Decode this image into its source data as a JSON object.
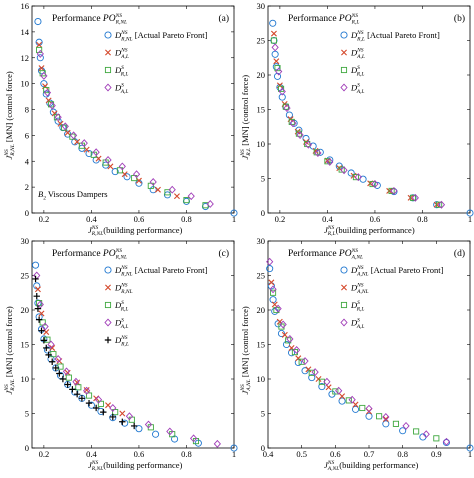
{
  "chart_data": [
    {
      "type": "scatter",
      "panel_label": "(a)",
      "title": {
        "prefix": "Performance ",
        "sym": "PO",
        "sup": "NS",
        "sub": "R,NL"
      },
      "xlabel": {
        "sym": "J",
        "sup": "NS",
        "sub": "R,NL",
        "text": "(building performance)"
      },
      "ylabel": {
        "sym": "J",
        "sup": "NS",
        "sub": "R,NL",
        "text": " [MN] (control force)"
      },
      "annotation": {
        "sym": "B",
        "sub": "2",
        "text": " Viscous Dampers"
      },
      "xlim": [
        0.15,
        1.0
      ],
      "ylim": [
        0,
        16
      ],
      "xticks": [
        0.2,
        0.4,
        0.6,
        0.8,
        1
      ],
      "xtick_labels": [
        "0.2",
        "0.4",
        "0.6",
        "0.8",
        "1"
      ],
      "yticks": [
        0,
        2,
        4,
        6,
        8,
        10,
        12,
        14,
        16
      ],
      "ytick_labels": [
        "0",
        "2",
        "4",
        "6",
        "8",
        "10",
        "12",
        "14",
        "16"
      ],
      "legend_position": "top-right",
      "series": [
        {
          "name": "actual-pareto",
          "marker": "circle",
          "color": "#1f77d0",
          "label": {
            "sym": "D",
            "sup": "NS",
            "sub": "R,NL",
            "tail": " [Actual Pareto Front]"
          },
          "x": [
            0.175,
            0.18,
            0.185,
            0.19,
            0.2,
            0.21,
            0.225,
            0.24,
            0.26,
            0.28,
            0.3,
            0.33,
            0.36,
            0.39,
            0.42,
            0.46,
            0.5,
            0.55,
            0.6,
            0.66,
            0.72,
            0.8,
            0.88,
            1.0
          ],
          "y": [
            14.8,
            13.2,
            12.0,
            11.0,
            10.0,
            9.2,
            8.5,
            7.8,
            7.1,
            6.6,
            6.1,
            5.5,
            5.0,
            4.6,
            4.1,
            3.7,
            3.2,
            2.8,
            2.3,
            1.8,
            1.4,
            0.9,
            0.5,
            0.0
          ]
        },
        {
          "name": "approx-nl",
          "marker": "cross",
          "color": "#d4482b",
          "label": {
            "sym": "D",
            "sup": "NS",
            "sub": "A,L",
            "tail": ""
          },
          "x": [
            0.18,
            0.19,
            0.205,
            0.22,
            0.245,
            0.27,
            0.3,
            0.34,
            0.38,
            0.43,
            0.48,
            0.54,
            0.6,
            0.68,
            0.76
          ],
          "y": [
            13.0,
            11.2,
            9.8,
            8.7,
            7.7,
            6.9,
            6.2,
            5.5,
            4.9,
            4.2,
            3.6,
            3.0,
            2.5,
            1.8,
            1.3
          ]
        },
        {
          "name": "approx-sl",
          "marker": "square",
          "color": "#3fa83f",
          "label": {
            "sym": "D",
            "sup": "S",
            "sub": "R,L",
            "tail": ""
          },
          "x": [
            0.18,
            0.195,
            0.21,
            0.23,
            0.255,
            0.285,
            0.32,
            0.36,
            0.41,
            0.46,
            0.52,
            0.58,
            0.65,
            0.72,
            0.8,
            0.88
          ],
          "y": [
            12.6,
            10.8,
            9.5,
            8.4,
            7.4,
            6.6,
            5.9,
            5.2,
            4.5,
            3.9,
            3.3,
            2.7,
            2.1,
            1.6,
            1.0,
            0.6
          ]
        },
        {
          "name": "approx-al",
          "marker": "diamond",
          "color": "#a03cb8",
          "label": {
            "sym": "D",
            "sup": "S",
            "sub": "A,L",
            "tail": ""
          },
          "x": [
            0.185,
            0.2,
            0.215,
            0.235,
            0.26,
            0.29,
            0.325,
            0.37,
            0.42,
            0.47,
            0.53,
            0.59,
            0.66,
            0.74,
            0.82,
            0.9
          ],
          "y": [
            12.3,
            10.6,
            9.3,
            8.3,
            7.4,
            6.7,
            6.0,
            5.4,
            4.7,
            4.1,
            3.6,
            3.0,
            2.4,
            1.8,
            1.3,
            0.7
          ]
        }
      ]
    },
    {
      "type": "scatter",
      "panel_label": "(b)",
      "title": {
        "prefix": "Performance ",
        "sym": "PO",
        "sup": "NS",
        "sub": "R,L"
      },
      "xlabel": {
        "sym": "J",
        "sup": "NS",
        "sub": "R,L",
        "text": "(building performance)"
      },
      "ylabel": {
        "sym": "J",
        "sup": "NS",
        "sub": "R,L",
        "text": " [MN] (control force)"
      },
      "xlim": [
        0.15,
        1.0
      ],
      "ylim": [
        0,
        30
      ],
      "xticks": [
        0.2,
        0.4,
        0.6,
        0.8,
        1
      ],
      "xtick_labels": [
        "0.2",
        "0.4",
        "0.6",
        "0.8",
        "1"
      ],
      "yticks": [
        0,
        5,
        10,
        15,
        20,
        25,
        30
      ],
      "ytick_labels": [
        "0",
        "5",
        "10",
        "15",
        "20",
        "25",
        "30"
      ],
      "legend_position": "top-right",
      "series": [
        {
          "name": "actual-pareto",
          "marker": "circle",
          "color": "#1f77d0",
          "label": {
            "sym": "D",
            "sup": "NS",
            "sub": "R,L",
            "tail": " [Actual Pareto Front]"
          },
          "x": [
            0.17,
            0.175,
            0.18,
            0.185,
            0.19,
            0.2,
            0.21,
            0.225,
            0.24,
            0.26,
            0.28,
            0.31,
            0.34,
            0.37,
            0.41,
            0.45,
            0.5,
            0.55,
            0.61,
            0.68,
            0.76,
            0.86,
            1.0
          ],
          "y": [
            27.5,
            25.0,
            23.0,
            21.2,
            19.8,
            18.2,
            16.8,
            15.4,
            14.2,
            13.0,
            12.0,
            10.8,
            9.7,
            8.8,
            7.7,
            6.8,
            5.8,
            4.9,
            4.0,
            3.1,
            2.2,
            1.2,
            0.0
          ]
        },
        {
          "name": "approx-nl",
          "marker": "cross",
          "color": "#d4482b",
          "label": {
            "sym": "D",
            "sup": "NS",
            "sub": "A,L",
            "tail": ""
          },
          "x": [
            0.175,
            0.185,
            0.2,
            0.22,
            0.245,
            0.275,
            0.31,
            0.35,
            0.4,
            0.45,
            0.51,
            0.58,
            0.66,
            0.75,
            0.86
          ],
          "y": [
            26.0,
            22.0,
            18.5,
            15.8,
            13.6,
            11.8,
            10.3,
            9.0,
            7.6,
            6.5,
            5.4,
            4.3,
            3.2,
            2.2,
            1.2
          ]
        },
        {
          "name": "approx-sl",
          "marker": "square",
          "color": "#3fa83f",
          "label": {
            "sym": "D",
            "sup": "S",
            "sub": "R,L",
            "tail": ""
          },
          "x": [
            0.175,
            0.19,
            0.205,
            0.225,
            0.25,
            0.28,
            0.315,
            0.355,
            0.4,
            0.46,
            0.52,
            0.59,
            0.67,
            0.76,
            0.87
          ],
          "y": [
            25.0,
            21.0,
            18.0,
            15.4,
            13.2,
            11.5,
            10.0,
            8.8,
            7.5,
            6.3,
            5.2,
            4.2,
            3.2,
            2.2,
            1.2
          ]
        },
        {
          "name": "approx-al",
          "marker": "diamond",
          "color": "#a03cb8",
          "label": {
            "sym": "D",
            "sup": "S",
            "sub": "A,L",
            "tail": ""
          },
          "x": [
            0.18,
            0.195,
            0.21,
            0.23,
            0.255,
            0.285,
            0.32,
            0.36,
            0.41,
            0.47,
            0.53,
            0.6,
            0.68,
            0.77,
            0.88
          ],
          "y": [
            24.0,
            20.5,
            17.6,
            15.2,
            13.0,
            11.3,
            9.9,
            8.7,
            7.4,
            6.2,
            5.2,
            4.2,
            3.2,
            2.2,
            1.2
          ]
        }
      ]
    },
    {
      "type": "scatter",
      "panel_label": "(c)",
      "title": {
        "prefix": "Performance ",
        "sym": "PO",
        "sup": "NS",
        "sub": "R,NL"
      },
      "xlabel": {
        "sym": "J",
        "sup": "NS",
        "sub": "R,NL",
        "text": "(building performance)"
      },
      "ylabel": {
        "sym": "J",
        "sup": "NS",
        "sub": "R,NL",
        "text": " [MN] (control force)"
      },
      "xlim": [
        0.15,
        1.0
      ],
      "ylim": [
        0,
        30
      ],
      "xticks": [
        0.2,
        0.4,
        0.6,
        0.8,
        1
      ],
      "xtick_labels": [
        "0.2",
        "0.4",
        "0.6",
        "0.8",
        "1"
      ],
      "yticks": [
        0,
        5,
        10,
        15,
        20,
        25,
        30
      ],
      "ytick_labels": [
        "0",
        "5",
        "10",
        "15",
        "20",
        "25",
        "30"
      ],
      "legend_position": "top-right",
      "series": [
        {
          "name": "actual-pareto",
          "marker": "circle",
          "color": "#1f77d0",
          "label": {
            "sym": "D",
            "sup": "NS",
            "sub": "R,NL",
            "tail": " [Actual Pareto Front]"
          },
          "x": [
            0.165,
            0.17,
            0.175,
            0.18,
            0.19,
            0.2,
            0.215,
            0.23,
            0.25,
            0.27,
            0.3,
            0.33,
            0.36,
            0.4,
            0.44,
            0.49,
            0.54,
            0.6,
            0.67,
            0.75,
            0.85,
            1.0
          ],
          "y": [
            26.5,
            23.5,
            21.0,
            19.0,
            17.2,
            15.8,
            14.2,
            12.9,
            11.6,
            10.5,
            9.2,
            8.1,
            7.2,
            6.2,
            5.3,
            4.4,
            3.6,
            2.8,
            2.0,
            1.3,
            0.7,
            0.0
          ]
        },
        {
          "name": "approx-nl",
          "marker": "cross",
          "color": "#d4482b",
          "label": {
            "sym": "D",
            "sup": "NS",
            "sub": "R,NL",
            "tail": ""
          },
          "x": [
            0.175,
            0.19,
            0.21,
            0.235,
            0.265,
            0.3,
            0.34,
            0.38,
            0.42,
            0.47,
            0.53
          ],
          "y": [
            23.0,
            19.5,
            16.8,
            14.5,
            12.6,
            10.9,
            9.5,
            8.4,
            7.2,
            6.2,
            5.0
          ]
        },
        {
          "name": "approx-sl",
          "marker": "square",
          "color": "#3fa83f",
          "label": {
            "sym": "D",
            "sup": "S",
            "sub": "R,L",
            "tail": ""
          },
          "x": [
            0.18,
            0.195,
            0.215,
            0.24,
            0.27,
            0.305,
            0.345,
            0.39,
            0.44,
            0.5,
            0.57,
            0.65,
            0.74,
            0.84
          ],
          "y": [
            21.0,
            18.2,
            15.7,
            13.6,
            11.8,
            10.2,
            8.8,
            7.6,
            6.4,
            5.2,
            4.1,
            3.0,
            2.0,
            1.0
          ]
        },
        {
          "name": "approx-al",
          "marker": "diamond",
          "color": "#a03cb8",
          "label": {
            "sym": "D",
            "sup": "S",
            "sub": "A,L",
            "tail": ""
          },
          "x": [
            0.17,
            0.185,
            0.205,
            0.23,
            0.26,
            0.295,
            0.335,
            0.38,
            0.43,
            0.49,
            0.56,
            0.64,
            0.73,
            0.83,
            0.93
          ],
          "y": [
            25.0,
            20.8,
            17.6,
            15.0,
            12.9,
            11.1,
            9.6,
            8.3,
            7.0,
            5.8,
            4.6,
            3.4,
            2.4,
            1.4,
            0.6
          ]
        },
        {
          "name": "approx-plus",
          "marker": "plus",
          "color": "#000000",
          "label": {
            "sym": "D",
            "sup": "NS",
            "sub": "R,L",
            "tail": ""
          },
          "x": [
            0.165,
            0.17,
            0.175,
            0.18,
            0.19,
            0.2,
            0.21,
            0.22,
            0.235,
            0.25,
            0.265,
            0.28,
            0.3,
            0.32,
            0.34,
            0.36,
            0.39,
            0.42,
            0.45,
            0.49,
            0.53,
            0.58
          ],
          "y": [
            24.5,
            22.0,
            20.2,
            18.6,
            17.0,
            15.6,
            14.5,
            13.5,
            12.5,
            11.6,
            10.8,
            10.0,
            9.2,
            8.5,
            7.8,
            7.2,
            6.5,
            5.8,
            5.2,
            4.5,
            3.8,
            3.2
          ]
        }
      ]
    },
    {
      "type": "scatter",
      "panel_label": "(d)",
      "title": {
        "prefix": "Performance ",
        "sym": "PO",
        "sup": "NS",
        "sub": "A,NL"
      },
      "xlabel": {
        "sym": "J",
        "sup": "NS",
        "sub": "A,NL",
        "text": "(building performance)"
      },
      "ylabel": {
        "sym": "J",
        "sup": "NS",
        "sub": "A,NL",
        "text": " [MN] (control force)"
      },
      "xlim": [
        0.4,
        1.0
      ],
      "ylim": [
        0,
        30
      ],
      "xticks": [
        0.4,
        0.5,
        0.6,
        0.7,
        0.8,
        0.9,
        1
      ],
      "xtick_labels": [
        "0.4",
        "0.5",
        "0.6",
        "0.7",
        "0.8",
        "0.9",
        "1"
      ],
      "yticks": [
        0,
        5,
        10,
        15,
        20,
        25,
        30
      ],
      "ytick_labels": [
        "0",
        "5",
        "10",
        "15",
        "20",
        "25",
        "30"
      ],
      "legend_position": "top-right",
      "series": [
        {
          "name": "actual-pareto",
          "marker": "circle",
          "color": "#1f77d0",
          "label": {
            "sym": "D",
            "sup": "NS",
            "sub": "A,NL",
            "tail": " [Actual Pareto Front]"
          },
          "x": [
            0.405,
            0.41,
            0.415,
            0.42,
            0.43,
            0.44,
            0.455,
            0.47,
            0.49,
            0.51,
            0.53,
            0.56,
            0.59,
            0.62,
            0.66,
            0.7,
            0.75,
            0.8,
            0.86,
            0.93,
            1.0
          ],
          "y": [
            26.0,
            23.5,
            21.5,
            19.8,
            18.0,
            16.6,
            15.0,
            13.8,
            12.4,
            11.2,
            10.2,
            8.9,
            7.8,
            6.8,
            5.6,
            4.6,
            3.5,
            2.5,
            1.6,
            0.8,
            0.0
          ]
        },
        {
          "name": "approx-nl",
          "marker": "cross",
          "color": "#d4482b",
          "label": {
            "sym": "D",
            "sup": "NS",
            "sub": "A,NL",
            "tail": ""
          },
          "x": [
            0.41,
            0.42,
            0.435,
            0.45,
            0.47,
            0.49,
            0.52,
            0.55,
            0.58,
            0.62,
            0.66,
            0.7,
            0.75
          ],
          "y": [
            24.0,
            20.8,
            18.3,
            16.4,
            14.5,
            13.0,
            11.4,
            10.0,
            8.8,
            7.5,
            6.3,
            5.3,
            4.2
          ]
        },
        {
          "name": "approx-sl",
          "marker": "square",
          "color": "#3fa83f",
          "label": {
            "sym": "D",
            "sup": "S",
            "sub": "R,L",
            "tail": ""
          },
          "x": [
            0.415,
            0.425,
            0.44,
            0.46,
            0.48,
            0.5,
            0.53,
            0.56,
            0.6,
            0.64,
            0.68,
            0.73,
            0.78,
            0.84,
            0.9
          ],
          "y": [
            22.5,
            20.0,
            17.6,
            15.6,
            13.9,
            12.5,
            10.9,
            9.6,
            8.2,
            6.9,
            5.8,
            4.6,
            3.5,
            2.4,
            1.4
          ]
        },
        {
          "name": "approx-al",
          "marker": "diamond",
          "color": "#a03cb8",
          "label": {
            "sym": "D",
            "sup": "S",
            "sub": "A,L",
            "tail": ""
          },
          "x": [
            0.405,
            0.415,
            0.43,
            0.445,
            0.465,
            0.485,
            0.51,
            0.54,
            0.575,
            0.61,
            0.65,
            0.7,
            0.75,
            0.81,
            0.87,
            0.93
          ],
          "y": [
            27.0,
            23.0,
            20.2,
            17.9,
            15.8,
            14.2,
            12.6,
            11.0,
            9.6,
            8.3,
            7.0,
            5.7,
            4.5,
            3.2,
            2.0,
            0.9
          ]
        }
      ]
    }
  ]
}
